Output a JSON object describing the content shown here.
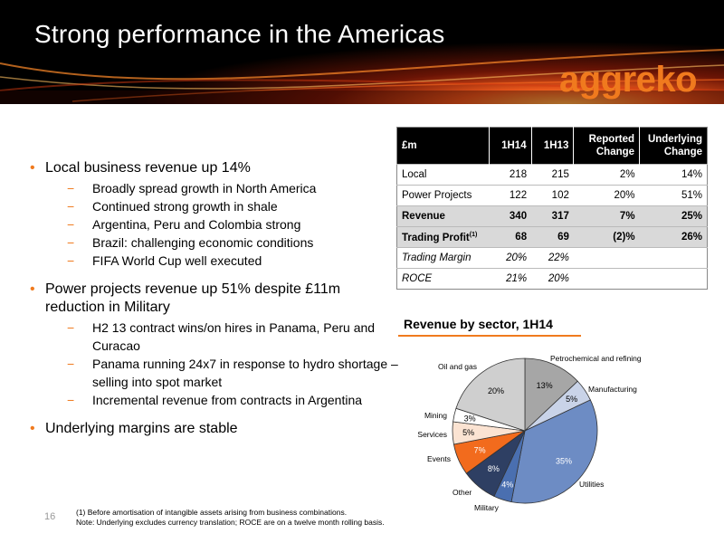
{
  "header": {
    "title": "Strong performance in the Americas",
    "logo": "aggreko"
  },
  "bullets": [
    {
      "text": "Local business revenue up 14%",
      "subs": [
        "Broadly spread growth in North America",
        "Continued strong growth in shale",
        "Argentina, Peru and Colombia strong",
        "Brazil: challenging economic conditions",
        "FIFA World Cup well executed"
      ]
    },
    {
      "text": "Power projects revenue up 51% despite £11m reduction in Military",
      "subs": [
        "H2 13 contract wins/on hires in Panama, Peru and Curacao",
        "Panama running 24x7 in response to hydro shortage – selling into spot market",
        "Incremental revenue from contracts in Argentina"
      ]
    },
    {
      "text": "Underlying margins are stable",
      "subs": []
    }
  ],
  "table": {
    "headers": [
      "£m",
      "1H14",
      "1H13",
      "Reported Change",
      "Underlying Change"
    ],
    "rows": [
      {
        "label": "Local",
        "c1": "218",
        "c2": "215",
        "c3": "2%",
        "c4": "14%"
      },
      {
        "label": "Power Projects",
        "c1": "122",
        "c2": "102",
        "c3": "20%",
        "c4": "51%"
      },
      {
        "label": "Revenue",
        "c1": "340",
        "c2": "317",
        "c3": "7%",
        "c4": "25%"
      },
      {
        "label": "Trading Profit",
        "sup": "(1)",
        "c1": "68",
        "c2": "69",
        "c3": "(2)%",
        "c4": "26%"
      },
      {
        "label": "Trading Margin",
        "c1": "20%",
        "c2": "22%",
        "c3": "",
        "c4": ""
      },
      {
        "label": "ROCE",
        "c1": "21%",
        "c2": "20%",
        "c3": "",
        "c4": ""
      }
    ]
  },
  "chart_data": {
    "type": "pie",
    "title": "Revenue by sector, 1H14",
    "slices": [
      {
        "name": "Petrochemical and refining",
        "value": 13,
        "label": "13%",
        "color": "#a6a6a6"
      },
      {
        "name": "Manufacturing",
        "value": 5,
        "label": "5%",
        "color": "#c9d3e8"
      },
      {
        "name": "Utilities",
        "value": 35,
        "label": "35%",
        "color": "#6d8cc4"
      },
      {
        "name": "Military",
        "value": 4,
        "label": "4%",
        "color": "#4a6fb0"
      },
      {
        "name": "Other",
        "value": 8,
        "label": "8%",
        "color": "#2e3f63"
      },
      {
        "name": "Events",
        "value": 7,
        "label": "7%",
        "color": "#f26b1d"
      },
      {
        "name": "Services",
        "value": 5,
        "label": "5%",
        "color": "#fbe3d2"
      },
      {
        "name": "Mining",
        "value": 3,
        "label": "3%",
        "color": "#ffffff"
      },
      {
        "name": "Oil and gas",
        "value": 20,
        "label": "20%",
        "color": "#cfcfcf"
      }
    ]
  },
  "footnote": {
    "line1": "(1)    Before amortisation of intangible assets arising from business combinations.",
    "line2": "Note: Underlying excludes currency translation; ROCE are on a twelve month rolling basis."
  },
  "page_number": "16",
  "colors": {
    "accent": "#f07a1e"
  }
}
